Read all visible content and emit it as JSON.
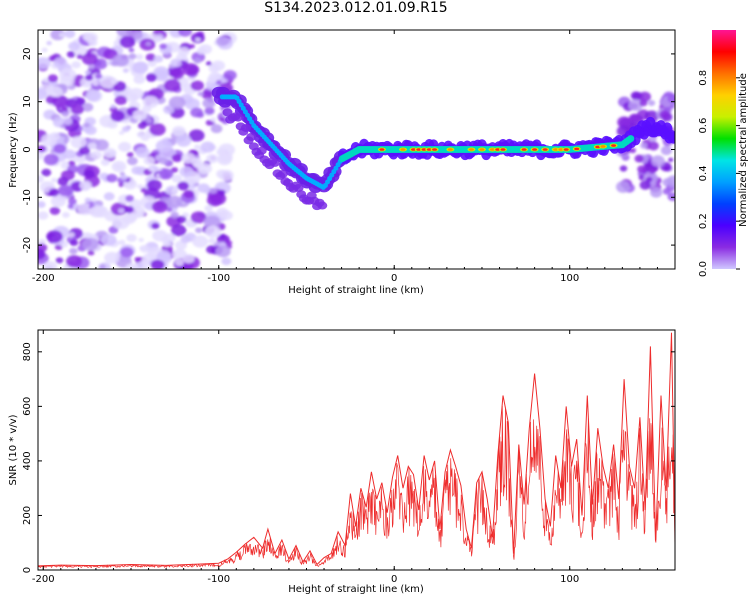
{
  "title": "S134.2023.012.01.09.R15",
  "colors": {
    "snr_line": "#ee2c2c",
    "colorbar_stops": [
      "#d0c8ff",
      "#8a2be2",
      "#4b00ff",
      "#0040ff",
      "#00a0ff",
      "#00e5e5",
      "#00e000",
      "#c8f000",
      "#ffd000",
      "#ff7000",
      "#ff0000",
      "#ff1493"
    ]
  },
  "chart_data": [
    {
      "type": "heatmap",
      "title": "",
      "xlabel": "Height of straight line (km)",
      "ylabel": "Frequency (Hz)",
      "xlim": [
        -203,
        160
      ],
      "ylim": [
        -25,
        25
      ],
      "xticks": [
        -200,
        -100,
        0,
        100
      ],
      "yticks": [
        -20,
        -10,
        0,
        10,
        20
      ],
      "colorbar": {
        "label": "Normalized spectral amplitude",
        "range": [
          0.0,
          1.0
        ],
        "ticks": [
          "0.0",
          "0.2",
          "0.4",
          "0.6",
          "0.8"
        ]
      },
      "ridge": [
        {
          "x": -100,
          "y": 11
        },
        {
          "x": -90,
          "y": 11
        },
        {
          "x": -80,
          "y": 5
        },
        {
          "x": -70,
          "y": 1
        },
        {
          "x": -60,
          "y": -3
        },
        {
          "x": -50,
          "y": -6
        },
        {
          "x": -40,
          "y": -8
        },
        {
          "x": -30,
          "y": -2
        },
        {
          "x": -20,
          "y": 0
        },
        {
          "x": 0,
          "y": 0
        },
        {
          "x": 50,
          "y": 0
        },
        {
          "x": 100,
          "y": 0
        },
        {
          "x": 130,
          "y": 1
        },
        {
          "x": 145,
          "y": 5
        },
        {
          "x": 160,
          "y": 3
        }
      ]
    },
    {
      "type": "line",
      "title": "",
      "xlabel": "Height of straight line (km)",
      "ylabel": "SNR (10 * v/v)",
      "xlim": [
        -203,
        160
      ],
      "ylim": [
        0,
        880
      ],
      "xticks": [
        -200,
        -100,
        0,
        100
      ],
      "yticks": [
        0,
        200,
        400,
        600,
        800
      ],
      "series": [
        {
          "name": "SNR",
          "x": [
            -203,
            -190,
            -170,
            -150,
            -130,
            -110,
            -100,
            -95,
            -90,
            -85,
            -80,
            -75,
            -72,
            -68,
            -64,
            -60,
            -56,
            -52,
            -48,
            -44,
            -40,
            -36,
            -32,
            -28,
            -25,
            -22,
            -19,
            -16,
            -13,
            -10,
            -7,
            -4,
            -1,
            2,
            5,
            8,
            11,
            14,
            17,
            20,
            23,
            26,
            29,
            32,
            35,
            38,
            41,
            44,
            47,
            50,
            53,
            56,
            59,
            62,
            65,
            68,
            71,
            74,
            77,
            80,
            83,
            86,
            89,
            92,
            95,
            98,
            101,
            104,
            107,
            110,
            113,
            116,
            119,
            122,
            125,
            128,
            131,
            134,
            137,
            140,
            143,
            146,
            149,
            152,
            155,
            158,
            160
          ],
          "values": [
            15,
            18,
            16,
            20,
            17,
            22,
            25,
            40,
            65,
            95,
            120,
            80,
            150,
            60,
            110,
            40,
            90,
            30,
            70,
            20,
            45,
            60,
            140,
            90,
            280,
            160,
            300,
            230,
            360,
            260,
            320,
            210,
            340,
            420,
            300,
            380,
            350,
            220,
            420,
            330,
            400,
            150,
            360,
            440,
            380,
            310,
            150,
            80,
            320,
            360,
            260,
            120,
            420,
            640,
            540,
            60,
            460,
            240,
            520,
            720,
            520,
            260,
            160,
            420,
            300,
            600,
            380,
            480,
            200,
            640,
            240,
            520,
            380,
            300,
            460,
            260,
            700,
            380,
            300,
            560,
            220,
            820,
            110,
            640,
            290,
            870,
            140
          ]
        }
      ]
    }
  ]
}
